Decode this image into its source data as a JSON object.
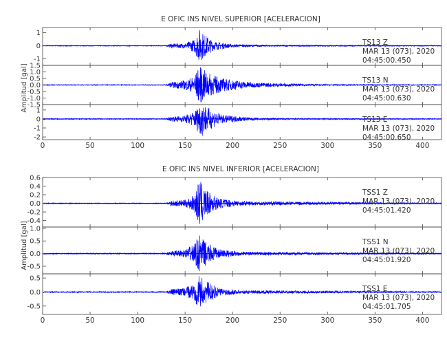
{
  "colors": {
    "trace": "#0000ff",
    "axis": "#444444",
    "text": "#333333"
  },
  "chart_data": [
    {
      "type": "line",
      "title": "E OFIC INS NIVEL SUPERIOR [ACELERACION]",
      "ylabel": "Amplitud [gal]",
      "xlim": [
        0,
        420
      ],
      "xticks": [
        "0",
        "50",
        "100",
        "150",
        "200",
        "250",
        "300",
        "350",
        "400"
      ],
      "show_xtick_labels": true,
      "panels": [
        {
          "ylim": [
            -1.5,
            1.4
          ],
          "yticks": [
            {
              "v": -1,
              "t": "-1"
            },
            {
              "v": 0,
              "t": "0"
            },
            {
              "v": 1,
              "t": "1"
            }
          ],
          "station": "TS13   Z",
          "date": "MAR 13 (073), 2020",
          "time": "04:45:00.450",
          "envelope": [
            {
              "t": 0,
              "a": 0.03
            },
            {
              "t": 130,
              "a": 0.03
            },
            {
              "t": 135,
              "a": 0.15
            },
            {
              "t": 150,
              "a": 0.2
            },
            {
              "t": 160,
              "a": 0.5
            },
            {
              "t": 165,
              "a": 1.3
            },
            {
              "t": 170,
              "a": 0.9
            },
            {
              "t": 180,
              "a": 0.35
            },
            {
              "t": 200,
              "a": 0.12
            },
            {
              "t": 240,
              "a": 0.06
            },
            {
              "t": 420,
              "a": 0.03
            }
          ]
        },
        {
          "ylim": [
            -1.5,
            1.5
          ],
          "yticks": [
            {
              "v": -1.5,
              "t": "-1.5"
            },
            {
              "v": -1.0,
              "t": "-1.0"
            },
            {
              "v": -0.5,
              "t": "-0.5"
            },
            {
              "v": 0.0,
              "t": "0.0"
            },
            {
              "v": 0.5,
              "t": "0.5"
            },
            {
              "v": 1.0,
              "t": "1.0"
            },
            {
              "v": 1.5,
              "t": "1.5"
            }
          ],
          "station": "TS13   N",
          "date": "MAR 13 (073), 2020",
          "time": "04:45:00.630",
          "envelope": [
            {
              "t": 0,
              "a": 0.03
            },
            {
              "t": 130,
              "a": 0.03
            },
            {
              "t": 135,
              "a": 0.2
            },
            {
              "t": 150,
              "a": 0.35
            },
            {
              "t": 160,
              "a": 0.7
            },
            {
              "t": 165,
              "a": 1.45
            },
            {
              "t": 175,
              "a": 0.9
            },
            {
              "t": 190,
              "a": 0.5
            },
            {
              "t": 220,
              "a": 0.2
            },
            {
              "t": 260,
              "a": 0.1
            },
            {
              "t": 300,
              "a": 0.05
            },
            {
              "t": 420,
              "a": 0.03
            }
          ]
        },
        {
          "ylim": [
            -2.3,
            1.6
          ],
          "yticks": [
            {
              "v": -2,
              "t": "-2"
            },
            {
              "v": -1,
              "t": "-1"
            },
            {
              "v": 0,
              "t": "0"
            },
            {
              "v": 1,
              "t": "1"
            }
          ],
          "station": "TS13   E",
          "date": "MAR 13 (073), 2020",
          "time": "04:45:00.650",
          "envelope": [
            {
              "t": 0,
              "a": 0.05
            },
            {
              "t": 130,
              "a": 0.05
            },
            {
              "t": 135,
              "a": 0.25
            },
            {
              "t": 150,
              "a": 0.4
            },
            {
              "t": 160,
              "a": 0.9
            },
            {
              "t": 167,
              "a": 2.0
            },
            {
              "t": 175,
              "a": 1.2
            },
            {
              "t": 190,
              "a": 0.45
            },
            {
              "t": 220,
              "a": 0.15
            },
            {
              "t": 260,
              "a": 0.08
            },
            {
              "t": 420,
              "a": 0.05
            }
          ]
        }
      ]
    },
    {
      "type": "line",
      "title": "E OFIC INS NIVEL INFERIOR [ACELERACION]",
      "ylabel": "Amplitud [gal]",
      "xlim": [
        0,
        420
      ],
      "xticks": [
        "0",
        "50",
        "100",
        "150",
        "200",
        "250",
        "300",
        "350",
        "400"
      ],
      "show_xtick_labels": true,
      "panels": [
        {
          "ylim": [
            -0.55,
            0.6
          ],
          "yticks": [
            {
              "v": -0.4,
              "t": "-0.4"
            },
            {
              "v": -0.2,
              "t": "-0.2"
            },
            {
              "v": 0.0,
              "t": "0.0"
            },
            {
              "v": 0.2,
              "t": "0.2"
            },
            {
              "v": 0.4,
              "t": "0.4"
            },
            {
              "v": 0.6,
              "t": "0.6"
            }
          ],
          "station": "TSS1   Z",
          "date": "MAR 13 (073), 2020",
          "time": "04:45:01.420",
          "envelope": [
            {
              "t": 0,
              "a": 0.01
            },
            {
              "t": 130,
              "a": 0.01
            },
            {
              "t": 135,
              "a": 0.06
            },
            {
              "t": 150,
              "a": 0.08
            },
            {
              "t": 160,
              "a": 0.2
            },
            {
              "t": 165,
              "a": 0.55
            },
            {
              "t": 172,
              "a": 0.3
            },
            {
              "t": 185,
              "a": 0.12
            },
            {
              "t": 210,
              "a": 0.05
            },
            {
              "t": 420,
              "a": 0.01
            }
          ]
        },
        {
          "ylim": [
            -0.8,
            1.05
          ],
          "yticks": [
            {
              "v": -0.5,
              "t": "-0.5"
            },
            {
              "v": 0.0,
              "t": "0.0"
            },
            {
              "v": 0.5,
              "t": "0.5"
            },
            {
              "v": 1.0,
              "t": "1.0"
            }
          ],
          "station": "TSS1   N",
          "date": "MAR 13 (073), 2020",
          "time": "04:45:01.920",
          "envelope": [
            {
              "t": 0,
              "a": 0.02
            },
            {
              "t": 130,
              "a": 0.02
            },
            {
              "t": 135,
              "a": 0.1
            },
            {
              "t": 150,
              "a": 0.15
            },
            {
              "t": 160,
              "a": 0.4
            },
            {
              "t": 165,
              "a": 0.75
            },
            {
              "t": 172,
              "a": 0.45
            },
            {
              "t": 185,
              "a": 0.18
            },
            {
              "t": 210,
              "a": 0.07
            },
            {
              "t": 420,
              "a": 0.02
            }
          ]
        },
        {
          "ylim": [
            -0.8,
            0.65
          ],
          "yticks": [
            {
              "v": -0.5,
              "t": "-0.5"
            },
            {
              "v": 0.0,
              "t": "0.0"
            },
            {
              "v": 0.5,
              "t": "0.5"
            }
          ],
          "station": "TSS1   E",
          "date": "MAR 13 (073), 2020",
          "time": "04:45:01.705",
          "envelope": [
            {
              "t": 0,
              "a": 0.02
            },
            {
              "t": 130,
              "a": 0.02
            },
            {
              "t": 135,
              "a": 0.1
            },
            {
              "t": 150,
              "a": 0.15
            },
            {
              "t": 160,
              "a": 0.35
            },
            {
              "t": 165,
              "a": 0.6
            },
            {
              "t": 172,
              "a": 0.4
            },
            {
              "t": 185,
              "a": 0.15
            },
            {
              "t": 210,
              "a": 0.06
            },
            {
              "t": 420,
              "a": 0.02
            }
          ]
        }
      ]
    }
  ]
}
